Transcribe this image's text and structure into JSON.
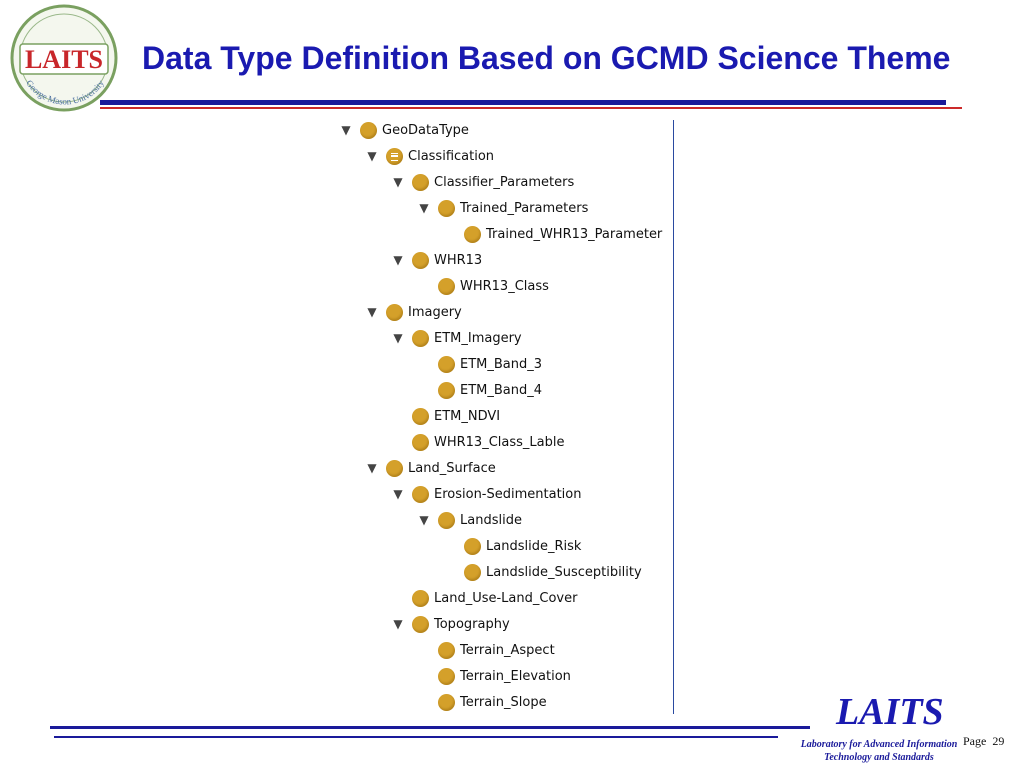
{
  "header": {
    "title": "Data Type Definition Based on GCMD Science Theme",
    "logo": {
      "name": "LAITS",
      "arc_text": "George Mason University"
    }
  },
  "tree": {
    "nodes": [
      {
        "label": "GeoDataType",
        "depth": 0,
        "expanded": true,
        "icon": "class"
      },
      {
        "label": "Classification",
        "depth": 1,
        "expanded": true,
        "icon": "equivalent-class"
      },
      {
        "label": "Classifier_Parameters",
        "depth": 2,
        "expanded": true,
        "icon": "class"
      },
      {
        "label": "Trained_Parameters",
        "depth": 3,
        "expanded": true,
        "icon": "class"
      },
      {
        "label": "Trained_WHR13_Parameter",
        "depth": 4,
        "expanded": null,
        "icon": "class"
      },
      {
        "label": "WHR13",
        "depth": 2,
        "expanded": true,
        "icon": "class"
      },
      {
        "label": "WHR13_Class",
        "depth": 3,
        "expanded": null,
        "icon": "class"
      },
      {
        "label": "Imagery",
        "depth": 1,
        "expanded": true,
        "icon": "class"
      },
      {
        "label": "ETM_Imagery",
        "depth": 2,
        "expanded": true,
        "icon": "class"
      },
      {
        "label": "ETM_Band_3",
        "depth": 3,
        "expanded": null,
        "icon": "class"
      },
      {
        "label": "ETM_Band_4",
        "depth": 3,
        "expanded": null,
        "icon": "class"
      },
      {
        "label": "ETM_NDVI",
        "depth": 2,
        "expanded": null,
        "icon": "class"
      },
      {
        "label": "WHR13_Class_Lable",
        "depth": 2,
        "expanded": null,
        "icon": "class"
      },
      {
        "label": "Land_Surface",
        "depth": 1,
        "expanded": true,
        "icon": "class"
      },
      {
        "label": "Erosion-Sedimentation",
        "depth": 2,
        "expanded": true,
        "icon": "class"
      },
      {
        "label": "Landslide",
        "depth": 3,
        "expanded": true,
        "icon": "class"
      },
      {
        "label": "Landslide_Risk",
        "depth": 4,
        "expanded": null,
        "icon": "class"
      },
      {
        "label": "Landslide_Susceptibility",
        "depth": 4,
        "expanded": null,
        "icon": "class"
      },
      {
        "label": "Land_Use-Land_Cover",
        "depth": 2,
        "expanded": null,
        "icon": "class"
      },
      {
        "label": "Topography",
        "depth": 2,
        "expanded": true,
        "icon": "class"
      },
      {
        "label": "Terrain_Aspect",
        "depth": 3,
        "expanded": null,
        "icon": "class"
      },
      {
        "label": "Terrain_Elevation",
        "depth": 3,
        "expanded": null,
        "icon": "class"
      },
      {
        "label": "Terrain_Slope",
        "depth": 3,
        "expanded": null,
        "icon": "class"
      }
    ]
  },
  "footer": {
    "logo_text": "LAITS",
    "subtitle_line1": "Laboratory for Advanced Information",
    "subtitle_line2": "Technology and Standards",
    "page_label": "Page",
    "page_number": "29"
  },
  "colors": {
    "title": "#1a1ab0",
    "rule_blue": "#1a1a9a",
    "rule_red": "#cc2a2a",
    "node_bullet": "#d4a02a"
  }
}
